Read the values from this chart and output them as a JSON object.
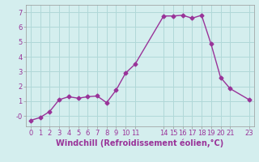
{
  "x": [
    0,
    1,
    2,
    3,
    4,
    5,
    6,
    7,
    8,
    9,
    10,
    11,
    14,
    15,
    16,
    17,
    18,
    19,
    20,
    21,
    23
  ],
  "y": [
    -0.3,
    -0.1,
    0.3,
    1.1,
    1.3,
    1.2,
    1.3,
    1.35,
    0.9,
    1.75,
    2.9,
    3.5,
    6.75,
    6.75,
    6.8,
    6.6,
    6.8,
    4.85,
    2.6,
    1.85,
    1.1
  ],
  "line_color": "#993399",
  "marker": "D",
  "markersize": 2.5,
  "linewidth": 1.0,
  "xlabel": "Windchill (Refroidissement éolien,°C)",
  "xlabel_fontsize": 7,
  "ylim": [
    -0.7,
    7.5
  ],
  "xlim": [
    -0.5,
    23.5
  ],
  "xticks": [
    0,
    1,
    2,
    3,
    4,
    5,
    6,
    7,
    8,
    9,
    10,
    11,
    14,
    15,
    16,
    17,
    18,
    19,
    20,
    21,
    23
  ],
  "xtick_labels": [
    "0",
    "1",
    "2",
    "3",
    "4",
    "5",
    "6",
    "7",
    "8",
    "9",
    "10",
    "11",
    "14",
    "15",
    "16",
    "17",
    "18",
    "19",
    "20",
    "21",
    "23"
  ],
  "yticks": [
    0,
    1,
    2,
    3,
    4,
    5,
    6,
    7
  ],
  "ytick_labels": [
    "-0",
    "1",
    "2",
    "3",
    "4",
    "5",
    "6",
    "7"
  ],
  "grid_color": "#b0d8d8",
  "background_color": "#d4eeee",
  "tick_fontsize": 6,
  "label_color": "#993399"
}
